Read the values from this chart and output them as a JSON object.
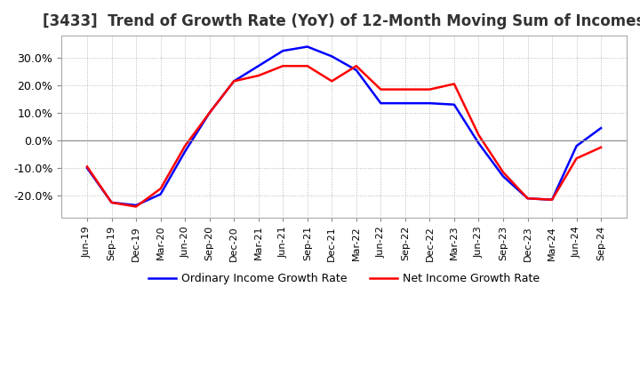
{
  "title": "[3433]  Trend of Growth Rate (YoY) of 12-Month Moving Sum of Incomes",
  "title_fontsize": 12,
  "ylim": [
    -0.28,
    0.38
  ],
  "yticks": [
    -0.2,
    -0.1,
    0.0,
    0.1,
    0.2,
    0.3
  ],
  "background_color": "#ffffff",
  "grid_color": "#aaaaaa",
  "legend_labels": [
    "Ordinary Income Growth Rate",
    "Net Income Growth Rate"
  ],
  "legend_colors": [
    "blue",
    "red"
  ],
  "x_labels": [
    "Jun-19",
    "Sep-19",
    "Dec-19",
    "Mar-20",
    "Jun-20",
    "Sep-20",
    "Dec-20",
    "Mar-21",
    "Jun-21",
    "Sep-21",
    "Dec-21",
    "Mar-22",
    "Jun-22",
    "Sep-22",
    "Dec-22",
    "Mar-23",
    "Jun-23",
    "Sep-23",
    "Dec-23",
    "Mar-24",
    "Jun-24",
    "Sep-24"
  ],
  "ordinary_income": [
    -0.1,
    -0.225,
    -0.235,
    -0.195,
    -0.04,
    0.1,
    0.215,
    0.27,
    0.325,
    0.34,
    0.305,
    0.255,
    0.135,
    0.135,
    0.135,
    0.13,
    -0.01,
    -0.13,
    -0.21,
    -0.215,
    -0.02,
    0.045
  ],
  "net_income": [
    -0.095,
    -0.225,
    -0.24,
    -0.175,
    -0.02,
    0.1,
    0.215,
    0.235,
    0.27,
    0.27,
    0.215,
    0.27,
    0.185,
    0.185,
    0.185,
    0.205,
    0.02,
    -0.115,
    -0.21,
    -0.215,
    -0.065,
    -0.025
  ]
}
